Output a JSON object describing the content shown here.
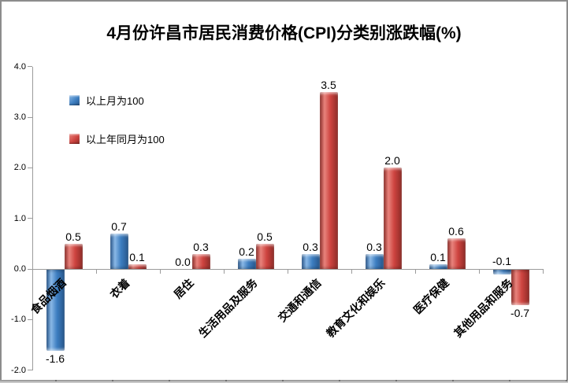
{
  "chart_data": {
    "type": "bar",
    "title": "4月份许昌市居民消费价格(CPI)分类别涨跌幅(%)",
    "categories": [
      "食品烟酒",
      "衣着",
      "居住",
      "生活用品及服务",
      "交通和通信",
      "教育文化和娱乐",
      "医疗保健",
      "其他用品和服务"
    ],
    "series": [
      {
        "name": "以上月为100",
        "color": "#3D7EC1",
        "color_light": "#8AB8E6",
        "color_dark": "#27568B",
        "values": [
          -1.6,
          0.7,
          0.0,
          0.2,
          0.3,
          0.3,
          0.1,
          -0.1
        ]
      },
      {
        "name": "以上年同月为100",
        "color": "#CE4440",
        "color_light": "#E8837C",
        "color_dark": "#8E2B27",
        "values": [
          0.5,
          0.1,
          0.3,
          0.5,
          3.5,
          2.0,
          0.6,
          -0.7
        ]
      }
    ],
    "y_ticks": [
      4.0,
      3.0,
      2.0,
      1.0,
      0.0,
      -1.0,
      -2.0
    ],
    "ylim": [
      -2.0,
      4.0
    ],
    "value_format_decimals": 1,
    "grid": false,
    "legend_position": "top-left-inside",
    "axis_color": "#9B9B9B",
    "text_color": "#000000"
  }
}
